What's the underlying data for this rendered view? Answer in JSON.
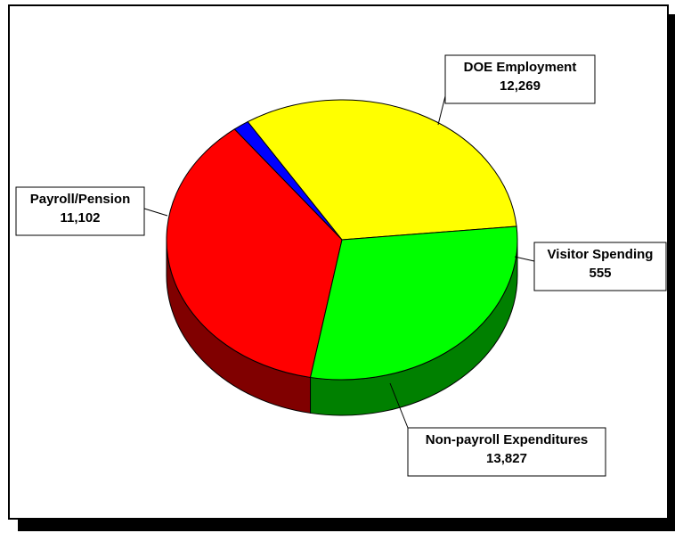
{
  "chart_data": {
    "type": "pie",
    "style": "3d-exploded-perspective",
    "legend": "none",
    "slices": [
      {
        "label": "DOE Employment",
        "value": 12269,
        "value_label": "12,269",
        "color": "#ffff00",
        "side_color": "#808000"
      },
      {
        "label": "Visitor Spending",
        "value": 555,
        "value_label": "555",
        "color": "#0000ff",
        "side_color": "#000080"
      },
      {
        "label": "Non-payroll Expenditures",
        "value": 13827,
        "value_label": "13,827",
        "color": "#ff0000",
        "side_color": "#800000"
      },
      {
        "label": "Payroll/Pension",
        "value": 11102,
        "value_label": "11,102",
        "color": "#00ff00",
        "side_color": "#008000"
      }
    ]
  }
}
